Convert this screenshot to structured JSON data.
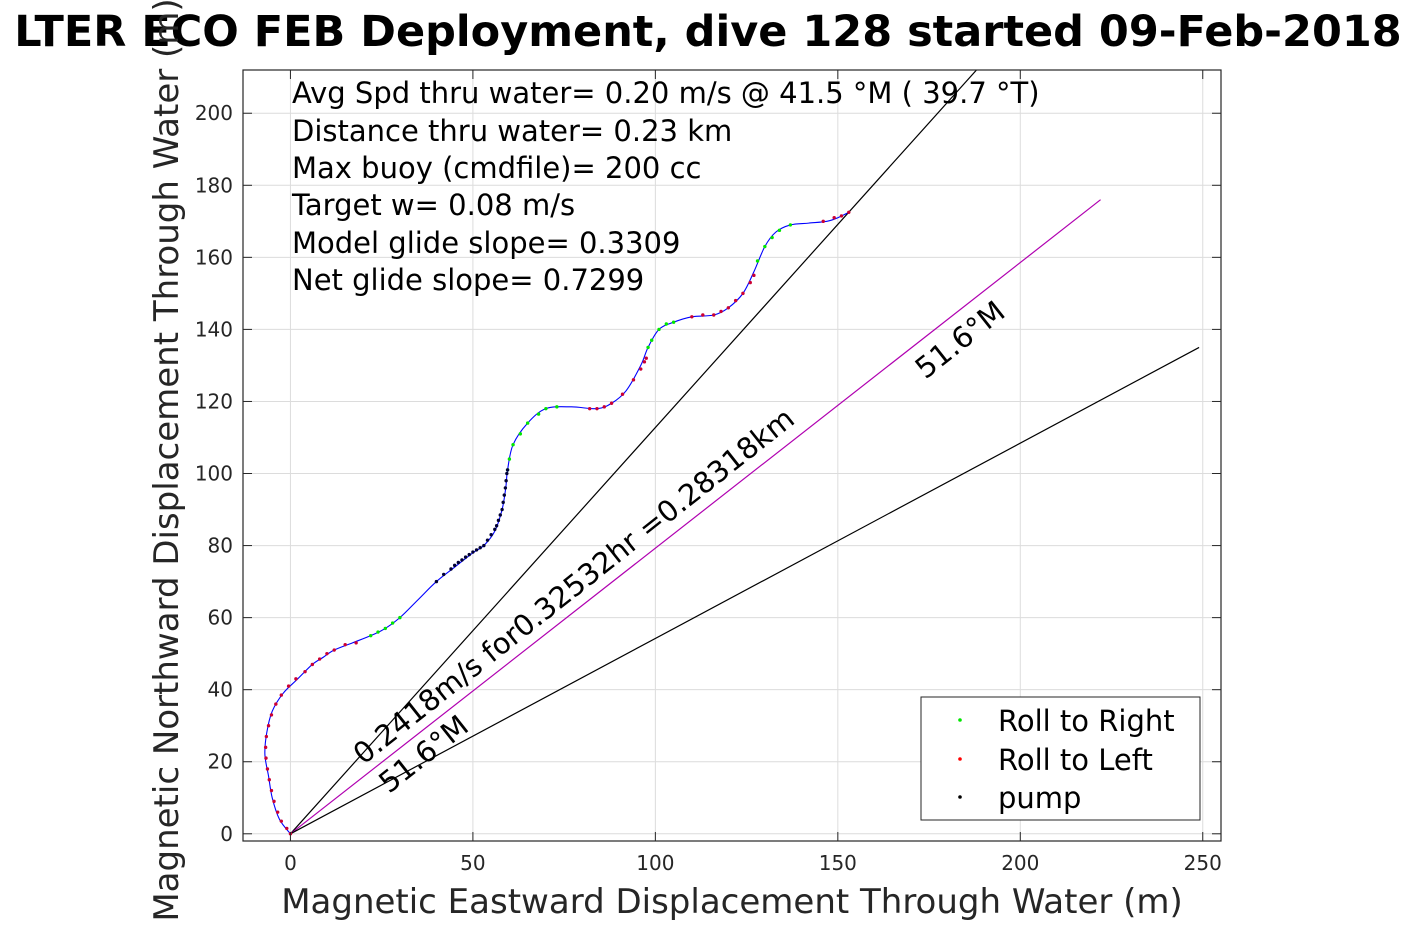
{
  "chart_data": {
    "type": "line",
    "title": "LTER ECO FEB Deployment, dive 128 started 09-Feb-2018",
    "xlabel": "Magnetic Eastward Displacement Through Water (m)",
    "ylabel": "Magnetic Northward Displacement Through Water (m)",
    "xlim": [
      -13,
      255
    ],
    "ylim": [
      -2,
      212
    ],
    "xticks": [
      0,
      50,
      100,
      150,
      200,
      250
    ],
    "yticks": [
      0,
      20,
      40,
      60,
      80,
      100,
      120,
      140,
      160,
      180,
      200
    ],
    "grid": true,
    "info_lines": [
      "Avg Spd thru water=  0.20 m/s @  41.5 °M ( 39.7 °T)",
      "Distance thru water=  0.23 km",
      "Max buoy (cmdfile)= 200 cc",
      "Target w= 0.08 m/s",
      "Model glide slope= 0.3309",
      "Net glide slope= 0.7299"
    ],
    "track": [
      [
        0,
        0
      ],
      [
        -3,
        4
      ],
      [
        -5,
        10
      ],
      [
        -6,
        16
      ],
      [
        -7,
        22
      ],
      [
        -6.5,
        28
      ],
      [
        -5,
        34
      ],
      [
        -2,
        39
      ],
      [
        2,
        43
      ],
      [
        6,
        47
      ],
      [
        9,
        49
      ],
      [
        12,
        51
      ],
      [
        17,
        53
      ],
      [
        22,
        55
      ],
      [
        26,
        57
      ],
      [
        30,
        60
      ],
      [
        35,
        65
      ],
      [
        40,
        70
      ],
      [
        45,
        74
      ],
      [
        50,
        78
      ],
      [
        53,
        80
      ],
      [
        56,
        84
      ],
      [
        58,
        90
      ],
      [
        59,
        96
      ],
      [
        59.5,
        101
      ],
      [
        61,
        108
      ],
      [
        65,
        114
      ],
      [
        70,
        118
      ],
      [
        77,
        118.5
      ],
      [
        84,
        118
      ],
      [
        88,
        119.5
      ],
      [
        92,
        123
      ],
      [
        96,
        130
      ],
      [
        98,
        135
      ],
      [
        101,
        140
      ],
      [
        105,
        142
      ],
      [
        110,
        143.5
      ],
      [
        116,
        144
      ],
      [
        120,
        146
      ],
      [
        124,
        150
      ],
      [
        127,
        156
      ],
      [
        130,
        163
      ],
      [
        133,
        167
      ],
      [
        137,
        169
      ],
      [
        142,
        169.5
      ],
      [
        147,
        170
      ],
      [
        150,
        171
      ],
      [
        153,
        172.5
      ]
    ],
    "roll_right_points": [
      [
        22,
        55
      ],
      [
        24,
        56
      ],
      [
        26,
        57
      ],
      [
        28,
        58.5
      ],
      [
        30,
        60
      ],
      [
        59.5,
        101
      ],
      [
        60,
        104
      ],
      [
        61,
        108
      ],
      [
        63,
        111
      ],
      [
        65,
        114
      ],
      [
        68,
        116.5
      ],
      [
        70,
        118
      ],
      [
        73,
        118.5
      ],
      [
        98,
        135
      ],
      [
        99,
        137
      ],
      [
        101,
        140
      ],
      [
        103,
        141.5
      ],
      [
        105,
        142
      ],
      [
        128,
        159
      ],
      [
        130,
        163
      ],
      [
        132,
        165.5
      ],
      [
        134,
        167.5
      ],
      [
        137,
        169
      ]
    ],
    "roll_left_points": [
      [
        0,
        0
      ],
      [
        -1,
        1.5
      ],
      [
        -2.5,
        3.5
      ],
      [
        -3.5,
        6
      ],
      [
        -4.5,
        9
      ],
      [
        -5.2,
        12
      ],
      [
        -5.8,
        15
      ],
      [
        -6.3,
        18
      ],
      [
        -6.7,
        21
      ],
      [
        -6.8,
        24
      ],
      [
        -6.6,
        27
      ],
      [
        -6,
        30
      ],
      [
        -5.2,
        33
      ],
      [
        -4,
        36
      ],
      [
        -2.5,
        38.5
      ],
      [
        -0.5,
        41
      ],
      [
        1.5,
        43
      ],
      [
        4,
        45
      ],
      [
        6,
        47
      ],
      [
        8,
        48.5
      ],
      [
        10,
        50
      ],
      [
        12,
        51
      ],
      [
        15,
        52.5
      ],
      [
        18,
        53
      ],
      [
        82,
        118
      ],
      [
        84,
        118
      ],
      [
        86,
        118.5
      ],
      [
        88,
        119.5
      ],
      [
        91,
        122
      ],
      [
        94,
        126
      ],
      [
        96,
        129
      ],
      [
        97,
        131
      ],
      [
        97.5,
        132
      ],
      [
        110,
        143.5
      ],
      [
        113,
        144
      ],
      [
        116,
        144
      ],
      [
        118,
        145
      ],
      [
        120,
        146
      ],
      [
        122,
        148
      ],
      [
        124,
        150
      ],
      [
        126,
        153
      ],
      [
        127,
        155
      ],
      [
        146,
        170
      ],
      [
        149,
        171
      ],
      [
        151,
        171.5
      ],
      [
        153,
        172.5
      ]
    ],
    "pump_points": [
      [
        40,
        70
      ],
      [
        42,
        72
      ],
      [
        44,
        73.5
      ],
      [
        45,
        74.5
      ],
      [
        46,
        75.3
      ],
      [
        47,
        76
      ],
      [
        48,
        76.8
      ],
      [
        49,
        77.5
      ],
      [
        50,
        78.2
      ],
      [
        51,
        78.8
      ],
      [
        52,
        79.4
      ],
      [
        53,
        80
      ],
      [
        54,
        81.5
      ],
      [
        55,
        83
      ],
      [
        56,
        84.5
      ],
      [
        56.5,
        85.5
      ],
      [
        57,
        87
      ],
      [
        57.5,
        88.5
      ],
      [
        58,
        90
      ],
      [
        58.3,
        92
      ],
      [
        58.6,
        94
      ],
      [
        58.9,
        96
      ],
      [
        59.1,
        98
      ],
      [
        59.3,
        100
      ],
      [
        59.5,
        101
      ]
    ],
    "reference_lines": [
      {
        "from": [
          0,
          0
        ],
        "to": [
          188,
          212
        ]
      },
      {
        "from": [
          0,
          0
        ],
        "to": [
          222,
          176
        ]
      },
      {
        "from": [
          0,
          0
        ],
        "to": [
          249,
          135
        ]
      }
    ],
    "annotations": [
      {
        "text": "0.2418m/s for0.32532hr =0.28318km",
        "at": [
          20,
          19
        ],
        "angle_deg": -38.4
      },
      {
        "text": "51.6°M",
        "at": [
          27,
          11
        ],
        "angle_deg": -38.4
      },
      {
        "text": "51.6°M",
        "at": [
          174,
          126
        ],
        "angle_deg": -38.4
      }
    ],
    "legend": {
      "placement": "bottom-right",
      "entries": [
        {
          "label": "Roll to Right",
          "color": "#00e600"
        },
        {
          "label": "Roll to Left",
          "color": "#ff0000"
        },
        {
          "label": "pump",
          "color": "#000000"
        }
      ]
    },
    "colors": {
      "track": "#0000ff",
      "model_line": "#b000b0",
      "roll_right": "#00e600",
      "roll_left": "#cc0033",
      "pump": "#000033",
      "reference": "#000000"
    }
  }
}
